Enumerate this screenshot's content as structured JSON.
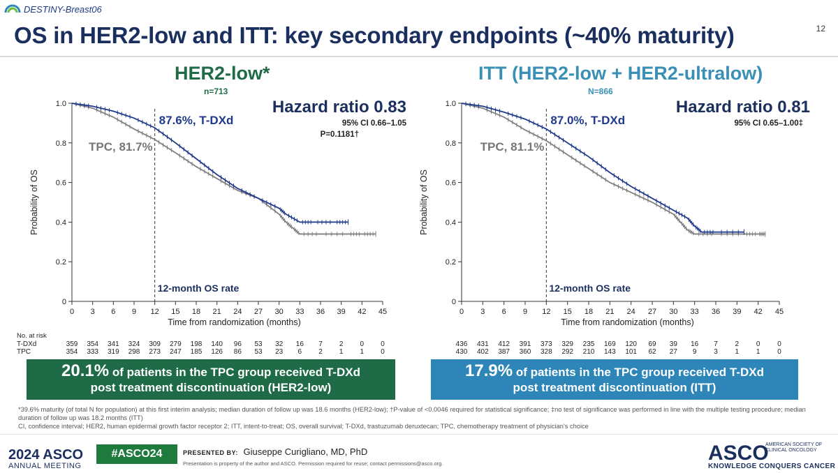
{
  "brand": "DESTINY-Breast06",
  "slide_number": "12",
  "title": "OS in HER2-low and ITT: key secondary endpoints (~40% maturity)",
  "colors": {
    "tdxd": "#1f3a8a",
    "tpc": "#7f7f7f",
    "her2low": "#1f6b48",
    "itt": "#3a8fb7",
    "banner_left": "#1f6b48",
    "banner_right": "#2e86b8"
  },
  "chart_data": [
    {
      "type": "line",
      "panel_title": "HER2-low*",
      "n_label": "n=713",
      "hazard_ratio": "Hazard ratio 0.83",
      "ci": "95% CI 0.66–1.05",
      "p_value": "P=0.1181†",
      "ylabel": "Probability of OS",
      "xlabel": "Time from randomization (months)",
      "xlim": [
        0,
        45
      ],
      "ylim": [
        0,
        1.0
      ],
      "x_ticks": [
        "0",
        "3",
        "6",
        "9",
        "12",
        "15",
        "18",
        "21",
        "24",
        "27",
        "30",
        "33",
        "36",
        "39",
        "42",
        "45"
      ],
      "y_ticks": [
        "0",
        "0.2",
        "0.4",
        "0.6",
        "0.8",
        "1.0"
      ],
      "marker_x": 12,
      "marker_label": "12-month OS rate",
      "tdxd_label": "87.6%, T-DXd",
      "tpc_label": "TPC, 81.7%",
      "series": [
        {
          "name": "T-DXd",
          "x": [
            0,
            3,
            6,
            9,
            12,
            15,
            18,
            21,
            24,
            27,
            30,
            31,
            33,
            35,
            38,
            40
          ],
          "y": [
            1.0,
            0.985,
            0.96,
            0.925,
            0.876,
            0.8,
            0.72,
            0.64,
            0.57,
            0.52,
            0.47,
            0.44,
            0.4,
            0.4,
            0.4,
            0.4
          ]
        },
        {
          "name": "TPC",
          "x": [
            0,
            3,
            6,
            9,
            12,
            15,
            18,
            21,
            24,
            27,
            30,
            31,
            32,
            33,
            36,
            40,
            42,
            44
          ],
          "y": [
            1.0,
            0.975,
            0.93,
            0.87,
            0.817,
            0.75,
            0.68,
            0.62,
            0.56,
            0.52,
            0.44,
            0.4,
            0.37,
            0.34,
            0.34,
            0.34,
            0.34,
            0.34
          ]
        }
      ],
      "at_risk": {
        "header": "No. at risk",
        "rows": [
          {
            "label": "T-DXd",
            "values": [
              "359",
              "354",
              "341",
              "324",
              "309",
              "279",
              "198",
              "140",
              "96",
              "53",
              "32",
              "16",
              "7",
              "2",
              "0",
              "0"
            ]
          },
          {
            "label": "TPC",
            "values": [
              "354",
              "333",
              "319",
              "298",
              "273",
              "247",
              "185",
              "126",
              "86",
              "53",
              "23",
              "6",
              "2",
              "1",
              "1",
              "0"
            ]
          }
        ]
      }
    },
    {
      "type": "line",
      "panel_title": "ITT (HER2-low + HER2-ultralow)",
      "n_label": "N=866",
      "hazard_ratio": "Hazard ratio 0.81",
      "ci": "95% CI 0.65–1.00‡",
      "p_value": "",
      "ylabel": "Probability of OS",
      "xlabel": "Time from randomization (months)",
      "xlim": [
        0,
        45
      ],
      "ylim": [
        0,
        1.0
      ],
      "x_ticks": [
        "0",
        "3",
        "6",
        "9",
        "12",
        "15",
        "18",
        "21",
        "24",
        "27",
        "30",
        "33",
        "36",
        "39",
        "42",
        "45"
      ],
      "y_ticks": [
        "0",
        "0.2",
        "0.4",
        "0.6",
        "0.8",
        "1.0"
      ],
      "marker_x": 12,
      "marker_label": "12-month OS rate",
      "tdxd_label": "87.0%, T-DXd",
      "tpc_label": "TPC, 81.1%",
      "series": [
        {
          "name": "T-DXd",
          "x": [
            0,
            3,
            6,
            9,
            12,
            15,
            18,
            21,
            24,
            27,
            30,
            32,
            33,
            34,
            36,
            40
          ],
          "y": [
            1.0,
            0.985,
            0.955,
            0.92,
            0.87,
            0.8,
            0.73,
            0.65,
            0.58,
            0.52,
            0.46,
            0.42,
            0.38,
            0.35,
            0.35,
            0.35
          ]
        },
        {
          "name": "TPC",
          "x": [
            0,
            3,
            6,
            9,
            12,
            15,
            18,
            21,
            24,
            27,
            30,
            31,
            32,
            33,
            36,
            40,
            42,
            43
          ],
          "y": [
            1.0,
            0.975,
            0.93,
            0.865,
            0.811,
            0.74,
            0.67,
            0.6,
            0.55,
            0.5,
            0.44,
            0.4,
            0.36,
            0.34,
            0.34,
            0.34,
            0.34,
            0.34
          ]
        }
      ],
      "at_risk": {
        "header": "",
        "rows": [
          {
            "label": "",
            "values": [
              "436",
              "431",
              "412",
              "391",
              "373",
              "329",
              "235",
              "169",
              "120",
              "69",
              "39",
              "16",
              "7",
              "2",
              "0",
              "0"
            ]
          },
          {
            "label": "",
            "values": [
              "430",
              "402",
              "387",
              "360",
              "328",
              "292",
              "210",
              "143",
              "101",
              "62",
              "27",
              "9",
              "3",
              "1",
              "1",
              "0"
            ]
          }
        ]
      }
    }
  ],
  "banners": [
    {
      "pct": "20.1%",
      "text1": " of patients in the TPC group received T-DXd",
      "text2": "post treatment discontinuation (HER2-low)"
    },
    {
      "pct": "17.9%",
      "text1": " of patients in the TPC group received T-DXd",
      "text2": "post treatment discontinuation (ITT)"
    }
  ],
  "footnotes": [
    "*39.6% maturity (of total N for population) at this first interim analysis; median duration of follow up was 18.6 months (HER2-low); †P-value of <0.0046 required for statistical significance; ‡no test of significance was performed in line with the multiple testing procedure; median duration of follow up was 18.2 months (ITT)",
    "CI, confidence interval; HER2, human epidermal growth factor receptor 2; ITT, intent-to-treat; OS, overall survival; T-DXd, trastuzumab deruxtecan; TPC, chemotherapy treatment of physician's choice"
  ],
  "footer": {
    "year": "2024 ASCO",
    "meeting": "ANNUAL MEETING",
    "hashtag": "#ASCO24",
    "presented_by_label": "PRESENTED BY:",
    "presenter": "Giuseppe Curigliano, MD, PhD",
    "property_note": "Presentation is property of the author and ASCO. Permission required for reuse; contact permissions@asco.org.",
    "logo": "ASCO",
    "society": "AMERICAN SOCIETY OF CLINICAL ONCOLOGY",
    "tagline": "KNOWLEDGE CONQUERS CANCER"
  }
}
